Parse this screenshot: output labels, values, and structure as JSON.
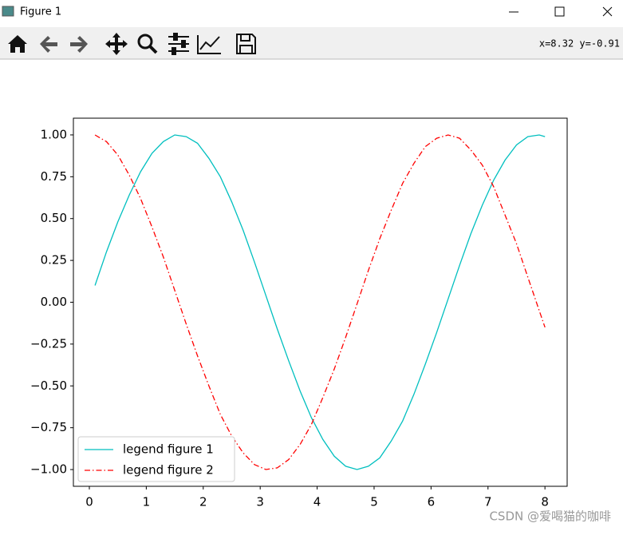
{
  "window": {
    "title": "Figure 1",
    "coordinates": "x=8.32 y=-0.91",
    "watermark": "CSDN @爱喝猫的咖啡"
  },
  "chart_data": {
    "type": "line",
    "x": [
      0.1,
      0.3,
      0.5,
      0.7,
      0.9,
      1.1,
      1.3,
      1.5,
      1.7,
      1.9,
      2.1,
      2.3,
      2.5,
      2.7,
      2.9,
      3.1,
      3.3,
      3.5,
      3.7,
      3.9,
      4.1,
      4.3,
      4.5,
      4.7,
      4.9,
      5.1,
      5.3,
      5.5,
      5.7,
      5.9,
      6.1,
      6.3,
      6.5,
      6.7,
      6.9,
      7.1,
      7.3,
      7.5,
      7.7,
      7.9,
      8.0
    ],
    "series": [
      {
        "name": "legend figure 1",
        "color": "#00bfbf",
        "linestyle": "solid",
        "values": [
          0.1,
          0.3,
          0.48,
          0.64,
          0.78,
          0.89,
          0.96,
          1.0,
          0.99,
          0.95,
          0.86,
          0.75,
          0.6,
          0.43,
          0.24,
          0.04,
          -0.16,
          -0.35,
          -0.53,
          -0.69,
          -0.82,
          -0.92,
          -0.98,
          -1.0,
          -0.98,
          -0.93,
          -0.83,
          -0.71,
          -0.55,
          -0.37,
          -0.18,
          0.02,
          0.22,
          0.41,
          0.58,
          0.73,
          0.85,
          0.94,
          0.99,
          1.0,
          0.99
        ]
      },
      {
        "name": "legend figure 2",
        "color": "#ff0000",
        "linestyle": "dashdot",
        "values": [
          1.0,
          0.96,
          0.88,
          0.76,
          0.62,
          0.45,
          0.27,
          0.07,
          -0.13,
          -0.32,
          -0.5,
          -0.67,
          -0.8,
          -0.9,
          -0.97,
          -1.0,
          -0.99,
          -0.94,
          -0.85,
          -0.73,
          -0.57,
          -0.4,
          -0.21,
          -0.01,
          0.19,
          0.38,
          0.55,
          0.71,
          0.83,
          0.93,
          0.98,
          1.0,
          0.98,
          0.91,
          0.82,
          0.69,
          0.52,
          0.35,
          0.15,
          -0.05,
          -0.15
        ]
      }
    ],
    "xlim": [
      -0.28,
      8.39
    ],
    "ylim": [
      -1.1,
      1.1
    ],
    "xticks": [
      0,
      1,
      2,
      3,
      4,
      5,
      6,
      7,
      8
    ],
    "yticks": [
      {
        "value": 1,
        "label": "1.00"
      },
      {
        "value": 0.75,
        "label": "0.75"
      },
      {
        "value": 0.5,
        "label": "0.50"
      },
      {
        "value": 0.25,
        "label": "0.25"
      },
      {
        "value": 0,
        "label": "0.00"
      },
      {
        "value": -0.25,
        "label": "−0.25"
      },
      {
        "value": -0.5,
        "label": "−0.50"
      },
      {
        "value": -0.75,
        "label": "−0.75"
      },
      {
        "value": -1,
        "label": "−1.00"
      }
    ],
    "grid": false,
    "legend": "lower left"
  }
}
